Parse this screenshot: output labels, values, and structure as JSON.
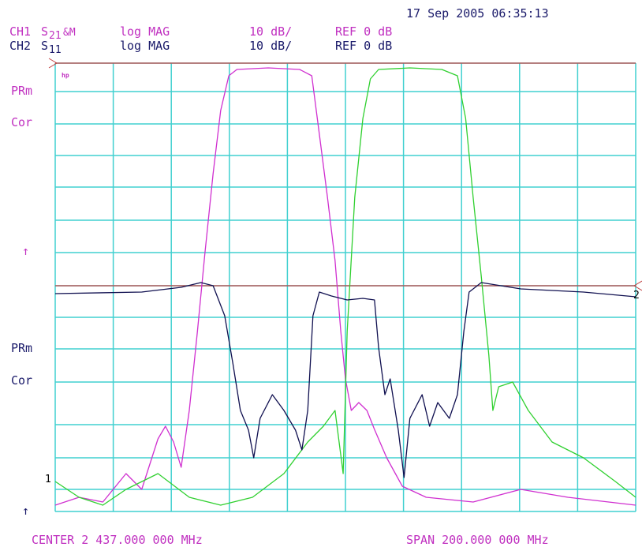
{
  "header": {
    "timestamp": "17 Sep 2005  06:35:13",
    "channels": [
      {
        "channel": "CH1",
        "param": "S",
        "sub": "21",
        "suffix": "&M",
        "format": "log MAG",
        "scale": "10 dB/",
        "ref": "REF 0 dB",
        "color": "#c030c0"
      },
      {
        "channel": "CH2",
        "param": "S",
        "sub": "11",
        "suffix": "",
        "format": "log MAG",
        "scale": "10 dB/",
        "ref": "REF 0 dB",
        "color": "#1a1a6a"
      }
    ]
  },
  "annotations": {
    "ch1": [
      "PRm",
      "Cor",
      "↑"
    ],
    "ch2": [
      "PRm",
      "Cor",
      "↑"
    ],
    "ref_marker_1": "1",
    "ref_marker_2": "2",
    "logo": "hp"
  },
  "footer": {
    "center": "CENTER 2 437.000 000 MHz",
    "span": "SPAN  200.000 000 MHz"
  },
  "traces": {
    "s21": {
      "color": "#d030d0",
      "channel": 0,
      "x": [
        0,
        0.41,
        0.82,
        1.22,
        1.49,
        1.77,
        1.9,
        2.04,
        2.17,
        2.31,
        2.45,
        2.58,
        2.72,
        2.85,
        2.99,
        3.13,
        3.67,
        4.21,
        4.42,
        4.55,
        4.69,
        4.82,
        4.92,
        5.0,
        5.1,
        5.23,
        5.37,
        5.5,
        5.71,
        5.98,
        6.39,
        7.2,
        8.02,
        8.83,
        10
      ],
      "values": [
        -140,
        -137.5,
        -139,
        -130,
        -135,
        -119,
        -115,
        -120,
        -128,
        -110,
        -85,
        -60,
        -35,
        -15,
        -4,
        -2,
        -1.5,
        -2,
        -4,
        -22.5,
        -42.5,
        -62.5,
        -85,
        -100,
        -110,
        -107.5,
        -110,
        -116,
        -125,
        -134,
        -137.5,
        -139,
        -135,
        -137.5,
        -140
      ]
    },
    "memory": {
      "color": "#30d030",
      "channel": 0,
      "x": [
        0,
        0.41,
        0.82,
        1.22,
        1.77,
        2.31,
        2.85,
        3.4,
        3.94,
        4.35,
        4.62,
        4.82,
        4.96,
        5.03,
        5.16,
        5.3,
        5.43,
        5.57,
        6.11,
        6.66,
        6.93,
        7.07,
        7.2,
        7.34,
        7.47,
        7.54,
        7.64,
        7.88,
        8.15,
        8.56,
        9.1,
        9.65,
        10
      ],
      "values": [
        -132.5,
        -137.5,
        -140,
        -135,
        -130,
        -137.5,
        -140,
        -137.5,
        -130,
        -120,
        -115,
        -110,
        -130,
        -85,
        -42.5,
        -17.5,
        -5,
        -2,
        -1.5,
        -2,
        -4,
        -17.5,
        -42.5,
        -67.5,
        -92.5,
        -110,
        -102.5,
        -101,
        -110,
        -120,
        -125,
        -132.5,
        -137.5
      ]
    },
    "s11": {
      "color": "#101050",
      "channel": 1,
      "x": [
        0,
        1.49,
        2.17,
        2.51,
        2.72,
        2.92,
        3.06,
        3.19,
        3.33,
        3.42,
        3.53,
        3.74,
        3.94,
        4.14,
        4.25,
        4.35,
        4.44,
        4.55,
        4.76,
        5.03,
        5.3,
        5.5,
        5.57,
        5.68,
        5.77,
        5.91,
        6.01,
        6.11,
        6.32,
        6.45,
        6.59,
        6.79,
        6.93,
        7.04,
        7.13,
        7.34,
        8.02,
        9.1,
        10
      ],
      "values": [
        -2.5,
        -2,
        -0.5,
        1,
        0,
        -9.5,
        -24.5,
        -39.5,
        -45.75,
        -54.5,
        -42,
        -34.5,
        -39.5,
        -45.75,
        -52,
        -39.5,
        -9.5,
        -2,
        -3.25,
        -4.5,
        -4,
        -4.5,
        -19.5,
        -34.5,
        -29.5,
        -45.75,
        -60.75,
        -42,
        -34.5,
        -44.5,
        -37,
        -42,
        -34.5,
        -14.5,
        -2,
        1,
        -1,
        -2,
        -3.5
      ]
    }
  }
}
